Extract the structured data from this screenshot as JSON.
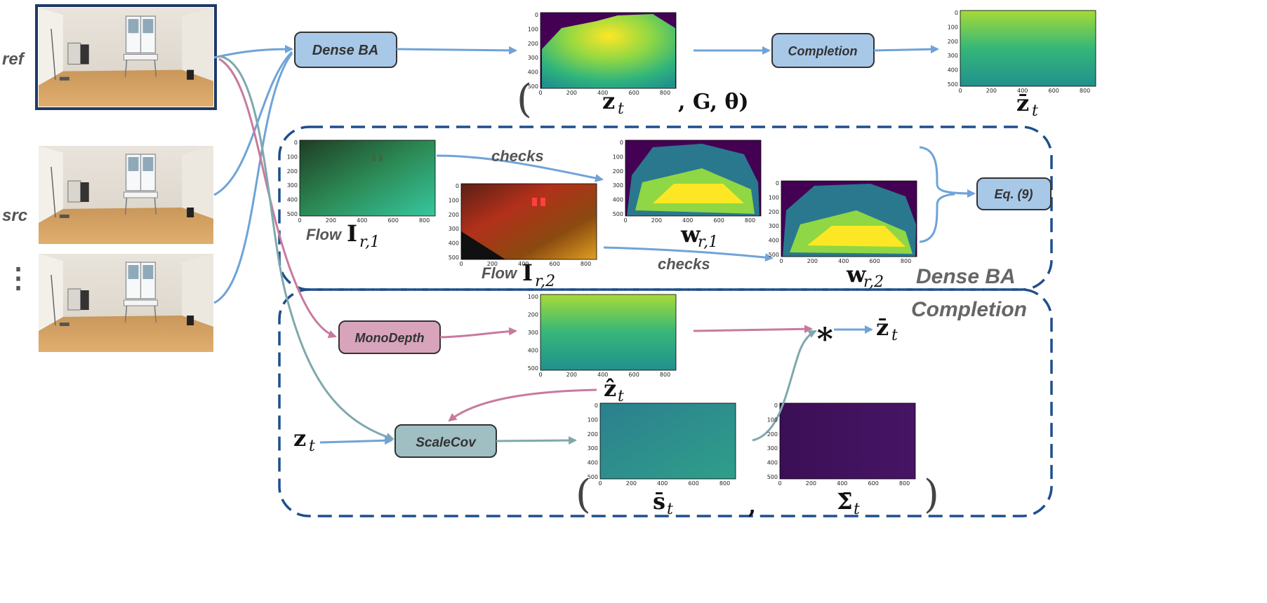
{
  "side_labels": {
    "ref": "ref",
    "src": "src",
    "ellipsis": "⋮"
  },
  "modules": {
    "dense_ba": "Dense BA",
    "completion": "Completion",
    "eq9": "Eq. (9)",
    "monodepth": "MonoDepth",
    "scalecov": "ScaleCov"
  },
  "groups": {
    "dense_ba_title": "Dense BA",
    "completion_title": "Completion"
  },
  "edge_labels": {
    "checks_1": "checks",
    "checks_2": "checks",
    "flow_1": "Flow",
    "flow_2": "Flow"
  },
  "math": {
    "z_main": "z",
    "z_sub": "t",
    "g_theta": ", G, θ)",
    "open_paren": "(",
    "zbar_top": "z̄",
    "zbar_top_sub": "t",
    "I1": "I",
    "I1_sub": "r,1",
    "I2": "I",
    "I2_sub": "r,2",
    "w1": "w",
    "w1_sub": "r,1",
    "w2": "w",
    "w2_sub": "r,2",
    "zhat": "ẑ",
    "zhat_sub": "t",
    "zin": "z",
    "zin_sub": "t",
    "star": "∗",
    "zbar_out": "z̄",
    "zbar_out_sub": "t",
    "sbar": "s̄",
    "sbar_sub": "t",
    "sigma": "Σ̄",
    "sigma_sub": "t",
    "comma": ",",
    "close_paren": ")",
    "open_paren2": "("
  },
  "plots": {
    "depth_top": {
      "xticks": [
        "0",
        "200",
        "400",
        "600",
        "800"
      ],
      "yticks": [
        "0",
        "100",
        "200",
        "300",
        "400",
        "500"
      ]
    },
    "depth_completed": {
      "xticks": [
        "0",
        "200",
        "400",
        "600",
        "800"
      ],
      "yticks": [
        "0",
        "100",
        "200",
        "300",
        "400",
        "500"
      ]
    },
    "flow1": {
      "xticks": [
        "0",
        "200",
        "400",
        "600",
        "800"
      ],
      "yticks": [
        "0",
        "100",
        "200",
        "300",
        "400",
        "500"
      ]
    },
    "flow2": {
      "xticks": [
        "0",
        "200",
        "400",
        "600",
        "800"
      ],
      "yticks": [
        "0",
        "100",
        "200",
        "300",
        "400",
        "500"
      ]
    },
    "w1": {
      "xticks": [
        "0",
        "200",
        "400",
        "600",
        "800"
      ],
      "yticks": [
        "0",
        "100",
        "200",
        "300",
        "400",
        "500"
      ]
    },
    "w2": {
      "xticks": [
        "0",
        "200",
        "400",
        "600",
        "800"
      ],
      "yticks": [
        "0",
        "100",
        "200",
        "300",
        "400",
        "500"
      ]
    },
    "mono": {
      "xticks": [
        "0",
        "200",
        "400",
        "600",
        "800"
      ],
      "yticks": [
        "100",
        "200",
        "300",
        "400",
        "500"
      ]
    },
    "scale": {
      "xticks": [
        "0",
        "200",
        "400",
        "600",
        "800"
      ],
      "yticks": [
        "0",
        "100",
        "200",
        "300",
        "400",
        "500"
      ]
    },
    "cov": {
      "xticks": [
        "0",
        "200",
        "400",
        "600",
        "800"
      ],
      "yticks": [
        "0",
        "100",
        "200",
        "300",
        "400",
        "500"
      ]
    }
  },
  "colors": {
    "blue_arrow": "#6fa3d8",
    "pink_arrow": "#c87a9e",
    "teal_arrow": "#7fa8ad",
    "module_blue": "#a8c8e8",
    "module_pink": "#d8a4bc",
    "module_teal": "#9fbfc3",
    "group_border": "#1f4e8c"
  }
}
